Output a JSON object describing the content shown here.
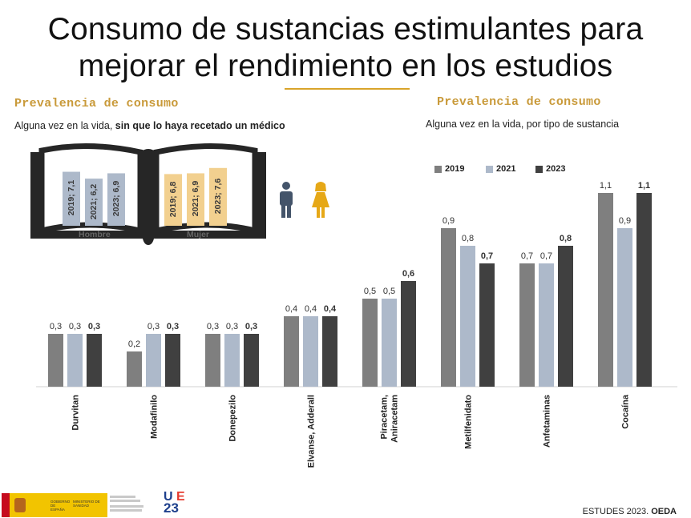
{
  "title_line1": "Consumo de sustancias estimulantes para",
  "title_line2": "mejorar el rendimiento en los estudios",
  "left_section": {
    "heading": "Prevalencia de consumo",
    "subtitle_plain": "Alguna vez en la vida, ",
    "subtitle_bold": "sin que lo haya recetado un médico"
  },
  "right_section": {
    "heading": "Prevalencia de consumo",
    "subtitle": "Alguna vez en la vida, por tipo de sustancia"
  },
  "colors": {
    "y2019": "#7f7f7f",
    "y2021": "#adb9ca",
    "y2023": "#404040",
    "hombre_bar": "#adb9ca",
    "mujer_bar": "#f2d08f",
    "accent": "#d9a42a",
    "hombre_icon": "#44546a",
    "mujer_icon": "#e6a817"
  },
  "icons": [
    "man-icon",
    "woman-icon"
  ],
  "book_chart": {
    "type": "bar",
    "groups": [
      {
        "name": "Hombre",
        "labels": [
          "2019; 7,1",
          "2021; 6,2",
          "2023; 6,9"
        ],
        "values": [
          7.1,
          6.2,
          6.9
        ]
      },
      {
        "name": "Mujer",
        "labels": [
          "2019; 6,8",
          "2021; 6,9",
          "2023; 7,6"
        ],
        "values": [
          6.8,
          6.9,
          7.6
        ]
      }
    ]
  },
  "chart_data": {
    "type": "bar",
    "categories": [
      "Durvitan",
      "Modafinilo",
      "Donepezilo",
      "Elvanse, Adderall",
      "Piracetam, Aniracetam",
      "Metilfenidato",
      "Anfetaminas",
      "Cocaína"
    ],
    "series": [
      {
        "name": "2019",
        "values": [
          0.3,
          0.2,
          0.3,
          0.4,
          0.5,
          0.9,
          0.7,
          1.1
        ],
        "labels": [
          "0,3",
          "0,2",
          "0,3",
          "0,4",
          "0,5",
          "0,9",
          "0,7",
          "1,1"
        ]
      },
      {
        "name": "2021",
        "values": [
          0.3,
          0.3,
          0.3,
          0.4,
          0.5,
          0.8,
          0.7,
          0.9
        ],
        "labels": [
          "0,3",
          "0,3",
          "0,3",
          "0,4",
          "0,5",
          "0,8",
          "0,7",
          "0,9"
        ]
      },
      {
        "name": "2023",
        "values": [
          0.3,
          0.3,
          0.3,
          0.4,
          0.6,
          0.7,
          0.8,
          1.1
        ],
        "labels": [
          "0,3",
          "0,3",
          "0,3",
          "0,4",
          "0,6",
          "0,7",
          "0,8",
          "1,1"
        ]
      }
    ],
    "legend_position": "top"
  },
  "footer": {
    "source_plain": "ESTUDES 2023. ",
    "source_bold": "OEDA",
    "logo_gobierno": "GOBIERNO DE ESPAÑA",
    "logo_ministerio": "MINISTERIO DE SANIDAD",
    "logo_u": "U",
    "logo_e": "E",
    "logo_23": "23"
  }
}
